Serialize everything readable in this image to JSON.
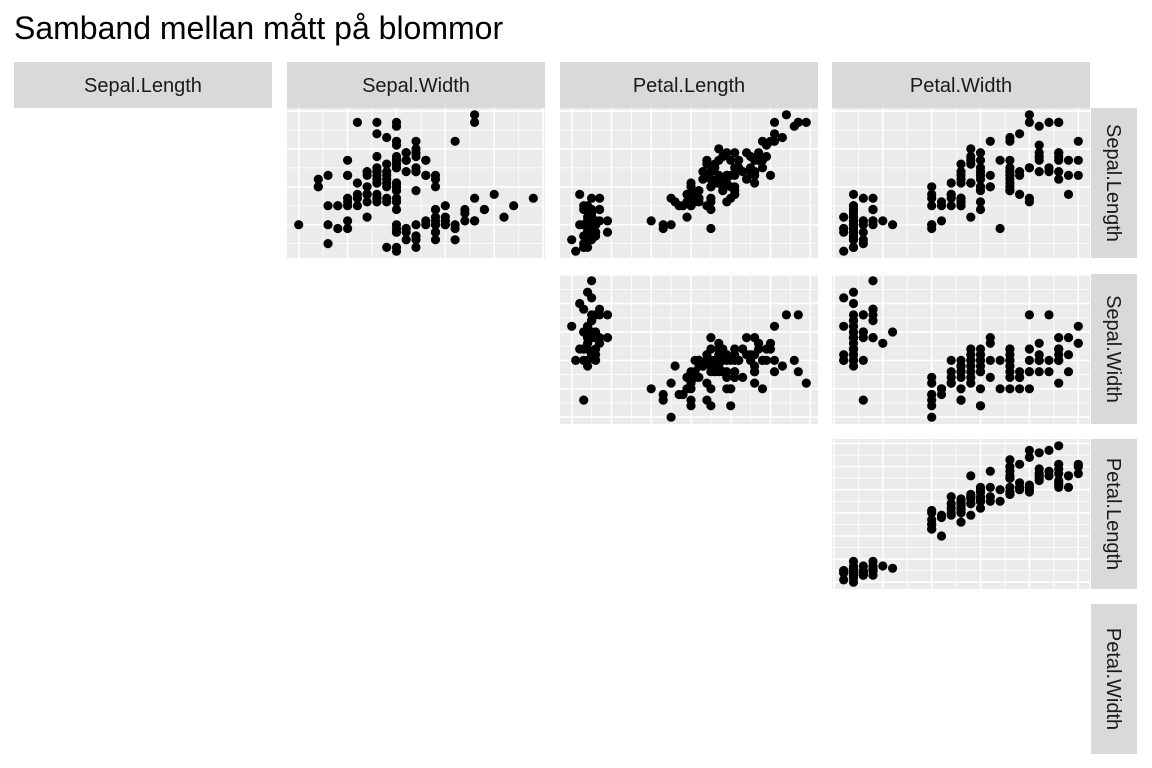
{
  "chart_data": {
    "type": "scatter",
    "title": "Samband mellan mått på blommor",
    "variables": [
      "Sepal.Length",
      "Sepal.Width",
      "Petal.Length",
      "Petal.Width"
    ],
    "ranges": {
      "Sepal.Length": [
        4.12,
        8.08
      ],
      "Sepal.Width": [
        1.88,
        4.52
      ],
      "Petal.Length": [
        0.705,
        7.195
      ],
      "Petal.Width": [
        -0.02,
        2.62
      ]
    },
    "grid": true,
    "legend": "none",
    "colors": {
      "panel_bg": "#EBEBEB",
      "grid": "#FFFFFF",
      "strip_bg": "#D9D9D9",
      "strip_text": "#1A1A1A",
      "points": "#000000"
    },
    "iris": {
      "Sepal.Length": [
        5.1,
        4.9,
        4.7,
        4.6,
        5.0,
        5.4,
        4.6,
        5.0,
        4.4,
        4.9,
        5.4,
        4.8,
        4.8,
        4.3,
        5.8,
        5.7,
        5.4,
        5.1,
        5.7,
        5.1,
        5.4,
        5.1,
        4.6,
        5.1,
        4.8,
        5.0,
        5.0,
        5.2,
        5.2,
        4.7,
        4.8,
        5.4,
        5.2,
        5.5,
        4.9,
        5.0,
        5.5,
        4.9,
        4.4,
        5.1,
        5.0,
        4.5,
        4.4,
        5.0,
        5.1,
        4.8,
        5.1,
        4.6,
        5.3,
        5.0,
        7.0,
        6.4,
        6.9,
        5.5,
        6.5,
        5.7,
        6.3,
        4.9,
        6.6,
        5.2,
        5.0,
        5.9,
        6.0,
        6.1,
        5.6,
        6.7,
        5.6,
        5.8,
        6.2,
        5.6,
        5.9,
        6.1,
        6.3,
        6.1,
        6.4,
        6.6,
        6.8,
        6.7,
        6.0,
        5.7,
        5.5,
        5.5,
        5.8,
        6.0,
        5.4,
        6.0,
        6.7,
        6.3,
        5.6,
        5.5,
        5.5,
        6.1,
        5.8,
        5.0,
        5.6,
        5.7,
        5.7,
        6.2,
        5.1,
        5.7,
        6.3,
        5.8,
        7.1,
        6.3,
        6.5,
        7.6,
        4.9,
        7.3,
        6.7,
        7.2,
        6.5,
        6.4,
        6.8,
        5.7,
        5.8,
        6.4,
        6.5,
        7.7,
        7.7,
        6.0,
        6.9,
        5.6,
        7.7,
        6.3,
        6.7,
        7.2,
        6.2,
        6.1,
        6.4,
        7.2,
        7.4,
        7.9,
        6.4,
        6.3,
        6.1,
        7.7,
        6.3,
        6.4,
        6.0,
        6.9,
        6.7,
        6.9,
        5.8,
        6.8,
        6.7,
        6.7,
        6.3,
        6.5,
        6.2,
        5.9
      ],
      "Sepal.Width": [
        3.5,
        3.0,
        3.2,
        3.1,
        3.6,
        3.9,
        3.4,
        3.4,
        2.9,
        3.1,
        3.7,
        3.4,
        3.0,
        3.0,
        4.0,
        4.4,
        3.9,
        3.5,
        3.8,
        3.8,
        3.4,
        3.7,
        3.6,
        3.3,
        3.4,
        3.0,
        3.4,
        3.5,
        3.4,
        3.2,
        3.1,
        3.4,
        4.1,
        4.2,
        3.1,
        3.2,
        3.5,
        3.6,
        3.0,
        3.4,
        3.5,
        2.3,
        3.2,
        3.5,
        3.8,
        3.0,
        3.8,
        3.2,
        3.7,
        3.3,
        3.2,
        3.2,
        3.1,
        2.3,
        2.8,
        2.8,
        3.3,
        2.4,
        2.9,
        2.7,
        2.0,
        3.0,
        2.2,
        2.9,
        2.9,
        3.1,
        3.0,
        2.7,
        2.2,
        2.5,
        3.2,
        2.8,
        2.5,
        2.8,
        2.9,
        3.0,
        2.8,
        3.0,
        2.9,
        2.6,
        2.4,
        2.4,
        2.7,
        2.7,
        3.0,
        3.4,
        3.1,
        2.3,
        3.0,
        2.5,
        2.6,
        3.0,
        2.6,
        2.3,
        2.7,
        3.0,
        2.9,
        2.9,
        2.5,
        2.8,
        3.3,
        2.7,
        3.0,
        2.9,
        3.0,
        3.0,
        2.5,
        2.9,
        2.5,
        3.6,
        3.2,
        2.7,
        3.0,
        2.5,
        2.8,
        3.2,
        3.0,
        3.8,
        2.6,
        2.2,
        3.2,
        2.8,
        2.8,
        2.7,
        3.3,
        3.2,
        2.8,
        3.0,
        2.8,
        3.0,
        2.8,
        3.8,
        2.8,
        2.8,
        2.6,
        3.0,
        3.4,
        3.1,
        3.0,
        3.1,
        3.1,
        3.1,
        2.7,
        3.2,
        3.3,
        3.0,
        2.5,
        3.0,
        3.4,
        3.0
      ],
      "Petal.Length": [
        1.4,
        1.4,
        1.3,
        1.5,
        1.4,
        1.7,
        1.4,
        1.5,
        1.4,
        1.5,
        1.5,
        1.6,
        1.4,
        1.1,
        1.2,
        1.5,
        1.3,
        1.4,
        1.7,
        1.5,
        1.7,
        1.5,
        1.0,
        1.7,
        1.9,
        1.6,
        1.6,
        1.5,
        1.4,
        1.6,
        1.6,
        1.5,
        1.5,
        1.4,
        1.5,
        1.2,
        1.3,
        1.4,
        1.3,
        1.5,
        1.3,
        1.3,
        1.3,
        1.6,
        1.9,
        1.4,
        1.6,
        1.4,
        1.5,
        1.4,
        4.7,
        4.5,
        4.9,
        4.0,
        4.6,
        4.5,
        4.7,
        3.3,
        4.6,
        3.9,
        3.5,
        4.2,
        4.0,
        4.7,
        3.6,
        4.4,
        4.5,
        4.1,
        4.5,
        3.9,
        4.8,
        4.0,
        4.9,
        4.7,
        4.3,
        4.4,
        4.8,
        5.0,
        4.5,
        3.5,
        3.8,
        3.7,
        3.9,
        5.1,
        4.5,
        4.5,
        4.7,
        4.4,
        4.1,
        4.0,
        4.4,
        4.6,
        4.0,
        3.3,
        4.2,
        4.2,
        4.2,
        4.3,
        3.0,
        4.1,
        6.0,
        5.1,
        5.9,
        5.6,
        5.8,
        6.6,
        4.5,
        6.3,
        5.8,
        6.1,
        5.1,
        5.3,
        5.5,
        5.0,
        5.1,
        5.3,
        5.5,
        6.7,
        6.9,
        5.0,
        5.7,
        4.9,
        6.7,
        4.9,
        5.7,
        6.0,
        4.8,
        4.9,
        5.6,
        5.8,
        6.1,
        6.4,
        5.6,
        5.1,
        5.6,
        6.1,
        5.6,
        5.5,
        4.8,
        5.4,
        5.6,
        5.1,
        5.1,
        5.9,
        5.7,
        5.2,
        5.0,
        5.2,
        5.4,
        5.1
      ],
      "Petal.Width": [
        0.2,
        0.2,
        0.2,
        0.2,
        0.2,
        0.4,
        0.3,
        0.2,
        0.2,
        0.1,
        0.2,
        0.2,
        0.1,
        0.1,
        0.2,
        0.4,
        0.4,
        0.3,
        0.3,
        0.3,
        0.2,
        0.4,
        0.2,
        0.5,
        0.2,
        0.2,
        0.4,
        0.2,
        0.2,
        0.2,
        0.2,
        0.4,
        0.1,
        0.2,
        0.2,
        0.2,
        0.2,
        0.1,
        0.2,
        0.2,
        0.3,
        0.3,
        0.2,
        0.6,
        0.4,
        0.3,
        0.2,
        0.2,
        0.2,
        0.2,
        1.4,
        1.5,
        1.5,
        1.3,
        1.5,
        1.3,
        1.6,
        1.0,
        1.3,
        1.4,
        1.0,
        1.5,
        1.0,
        1.4,
        1.3,
        1.4,
        1.5,
        1.0,
        1.5,
        1.1,
        1.8,
        1.3,
        1.5,
        1.2,
        1.3,
        1.4,
        1.4,
        1.7,
        1.5,
        1.0,
        1.1,
        1.0,
        1.2,
        1.6,
        1.5,
        1.6,
        1.5,
        1.3,
        1.3,
        1.3,
        1.2,
        1.4,
        1.2,
        1.0,
        1.3,
        1.2,
        1.3,
        1.3,
        1.1,
        1.3,
        2.5,
        1.9,
        2.1,
        1.8,
        2.2,
        2.1,
        1.7,
        1.8,
        1.8,
        2.5,
        2.0,
        1.9,
        2.1,
        2.0,
        2.4,
        2.3,
        1.8,
        2.2,
        2.3,
        1.5,
        2.3,
        2.0,
        2.0,
        1.8,
        2.1,
        1.8,
        1.8,
        1.8,
        2.1,
        1.6,
        1.9,
        2.0,
        2.2,
        1.5,
        1.4,
        2.3,
        2.4,
        1.8,
        1.8,
        2.1,
        2.4,
        2.3,
        1.9,
        2.3,
        2.5,
        2.3,
        1.9,
        2.0,
        2.3,
        1.8
      ]
    }
  }
}
